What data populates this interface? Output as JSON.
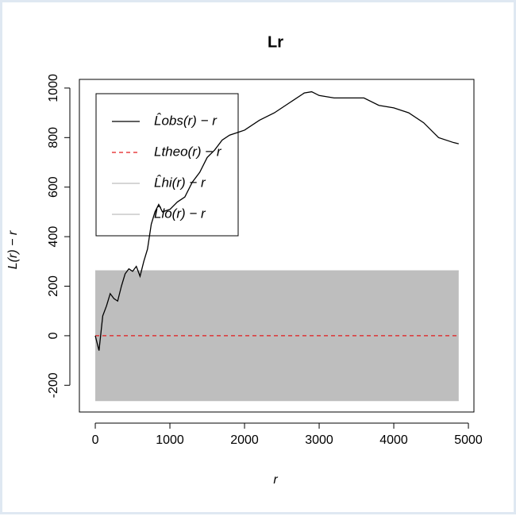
{
  "chart_data": {
    "type": "envelope",
    "title": "Lr",
    "x_label": "r",
    "y_label": "L(r) − r",
    "x": [
      0,
      50,
      100,
      150,
      200,
      250,
      300,
      350,
      400,
      450,
      500,
      550,
      600,
      650,
      700,
      750,
      800,
      850,
      900,
      1000,
      1100,
      1200,
      1300,
      1400,
      1500,
      1600,
      1700,
      1800,
      1900,
      2000,
      2200,
      2400,
      2600,
      2800,
      2900,
      3000,
      3200,
      3400,
      3600,
      3800,
      4000,
      4200,
      4400,
      4600,
      4800,
      4870
    ],
    "series": [
      {
        "name": "L̂obs(r) − r",
        "color": "#000000",
        "dash": false,
        "values": [
          0,
          -60,
          80,
          120,
          170,
          150,
          140,
          200,
          250,
          270,
          260,
          280,
          240,
          300,
          350,
          450,
          500,
          530,
          500,
          510,
          540,
          560,
          620,
          660,
          720,
          750,
          790,
          810,
          820,
          830,
          870,
          900,
          940,
          980,
          985,
          970,
          960,
          960,
          960,
          930,
          920,
          900,
          860,
          800,
          780,
          775
        ]
      },
      {
        "name": "Ltheo(r) − r",
        "color": "#e41a1c",
        "dash": true,
        "values": [
          0,
          0,
          0,
          0,
          0,
          0,
          0,
          0,
          0,
          0,
          0,
          0,
          0,
          0,
          0,
          0,
          0,
          0,
          0,
          0,
          0,
          0,
          0,
          0,
          0,
          0,
          0,
          0,
          0,
          0,
          0,
          0,
          0,
          0,
          0,
          0,
          0,
          0,
          0,
          0,
          0,
          0,
          0,
          0,
          0,
          0
        ]
      },
      {
        "name": "L̂hi(r) − r",
        "color": "#bebebe",
        "dash": false,
        "values": [
          262,
          262,
          262,
          262,
          262,
          262,
          262,
          262,
          262,
          262,
          262,
          262,
          262,
          262,
          262,
          262,
          262,
          262,
          262,
          262,
          262,
          262,
          262,
          262,
          262,
          262,
          262,
          262,
          262,
          262,
          262,
          262,
          262,
          262,
          262,
          262,
          262,
          262,
          262,
          262,
          262,
          262,
          262,
          262,
          262,
          262
        ]
      },
      {
        "name": "L̂lo(r) − r",
        "color": "#bebebe",
        "dash": false,
        "values": [
          -262,
          -262,
          -262,
          -262,
          -262,
          -262,
          -262,
          -262,
          -262,
          -262,
          -262,
          -262,
          -262,
          -262,
          -262,
          -262,
          -262,
          -262,
          -262,
          -262,
          -262,
          -262,
          -262,
          -262,
          -262,
          -262,
          -262,
          -262,
          -262,
          -262,
          -262,
          -262,
          -262,
          -262,
          -262,
          -262,
          -262,
          -262,
          -262,
          -262,
          -262,
          -262,
          -262,
          -262,
          -262,
          -262
        ]
      }
    ],
    "xlim": [
      -213,
      5074
    ],
    "ylim": [
      -308,
      1035
    ],
    "xticks": [
      0,
      1000,
      2000,
      3000,
      4000,
      5000
    ],
    "yticks": [
      -200,
      0,
      200,
      400,
      600,
      800,
      1000
    ],
    "legend": "top-left"
  }
}
